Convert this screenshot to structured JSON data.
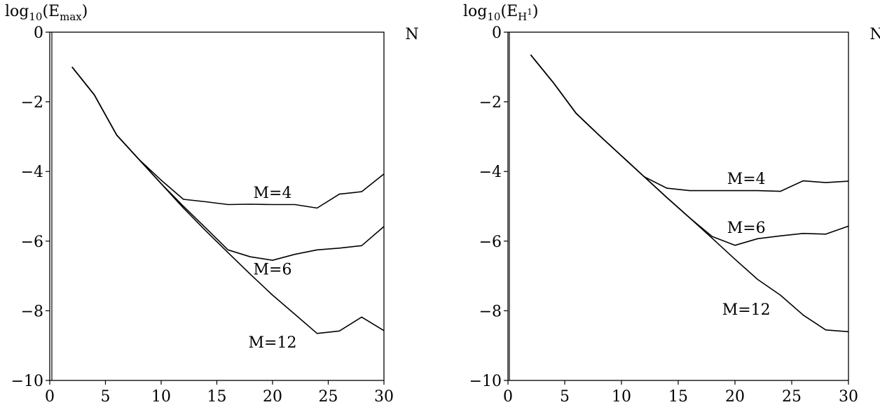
{
  "chart_data": [
    {
      "type": "line",
      "ylabel_base": "log",
      "ylabel_sub": "10",
      "ylabel_arg": "E",
      "ylabel_arg_sub": "max",
      "ylabel_open": "(",
      "ylabel_close": ")",
      "xlabel": "N",
      "xlim": [
        0,
        30
      ],
      "ylim": [
        -10,
        0
      ],
      "xticks": [
        0,
        5,
        10,
        15,
        20,
        25,
        30
      ],
      "yticks": [
        0,
        -2,
        -4,
        -6,
        -8,
        -10
      ],
      "xtick_labels": [
        "0",
        "5",
        "10",
        "15",
        "20",
        "25",
        "30"
      ],
      "ytick_labels": [
        "0",
        "−2",
        "−4",
        "−6",
        "−8",
        "−10"
      ],
      "series": [
        {
          "name": "M=4",
          "x": [
            2,
            4,
            6,
            8,
            10,
            12,
            14,
            16,
            18,
            20,
            22,
            24,
            26,
            28,
            30
          ],
          "values": [
            -1.0,
            -1.8,
            -2.95,
            -3.65,
            -4.25,
            -4.8,
            -4.87,
            -4.95,
            -4.94,
            -4.95,
            -4.95,
            -5.05,
            -4.65,
            -4.58,
            -4.07
          ],
          "label_at": [
            20,
            -4.6
          ]
        },
        {
          "name": "M=6",
          "x": [
            2,
            4,
            6,
            8,
            10,
            12,
            14,
            16,
            18,
            20,
            22,
            24,
            26,
            28,
            30
          ],
          "values": [
            -1.0,
            -1.8,
            -2.95,
            -3.65,
            -4.35,
            -5.0,
            -5.62,
            -6.25,
            -6.45,
            -6.55,
            -6.38,
            -6.25,
            -6.2,
            -6.13,
            -5.58
          ],
          "label_at": [
            20,
            -6.8
          ]
        },
        {
          "name": "M=12",
          "x": [
            2,
            4,
            6,
            8,
            10,
            12,
            14,
            16,
            18,
            20,
            22,
            24,
            26,
            28,
            30
          ],
          "values": [
            -1.0,
            -1.8,
            -2.95,
            -3.65,
            -4.35,
            -5.05,
            -5.7,
            -6.33,
            -6.95,
            -7.55,
            -8.1,
            -8.65,
            -8.58,
            -8.18,
            -8.57
          ],
          "label_at": [
            20,
            -8.9
          ]
        }
      ]
    },
    {
      "type": "line",
      "ylabel_base": "log",
      "ylabel_sub": "10",
      "ylabel_arg": "E",
      "ylabel_arg_sub": "H",
      "ylabel_arg_sup": "1",
      "ylabel_open": "(",
      "ylabel_close": ")",
      "xlabel": "N",
      "xlim": [
        0,
        30
      ],
      "ylim": [
        -10,
        0
      ],
      "xticks": [
        0,
        5,
        10,
        15,
        20,
        25,
        30
      ],
      "yticks": [
        0,
        -2,
        -4,
        -6,
        -8,
        -10
      ],
      "xtick_labels": [
        "0",
        "5",
        "10",
        "15",
        "20",
        "25",
        "30"
      ],
      "ytick_labels": [
        "0",
        "−2",
        "−4",
        "−6",
        "−8",
        "−10"
      ],
      "series": [
        {
          "name": "M=4",
          "x": [
            2,
            4,
            6,
            8,
            10,
            12,
            14,
            16,
            18,
            20,
            22,
            24,
            26,
            28,
            30
          ],
          "values": [
            -0.65,
            -1.45,
            -2.33,
            -2.95,
            -3.55,
            -4.15,
            -4.48,
            -4.55,
            -4.55,
            -4.55,
            -4.55,
            -4.57,
            -4.27,
            -4.32,
            -4.28
          ],
          "label_at": [
            21,
            -4.2
          ]
        },
        {
          "name": "M=6",
          "x": [
            2,
            4,
            6,
            8,
            10,
            12,
            14,
            16,
            18,
            20,
            22,
            24,
            26,
            28,
            30
          ],
          "values": [
            -0.65,
            -1.45,
            -2.33,
            -2.95,
            -3.55,
            -4.15,
            -4.75,
            -5.33,
            -5.87,
            -6.12,
            -5.93,
            -5.85,
            -5.78,
            -5.8,
            -5.57
          ],
          "label_at": [
            21,
            -5.6
          ]
        },
        {
          "name": "M=12",
          "x": [
            2,
            4,
            6,
            8,
            10,
            12,
            14,
            16,
            18,
            20,
            22,
            24,
            26,
            28,
            30
          ],
          "values": [
            -0.65,
            -1.45,
            -2.33,
            -2.95,
            -3.55,
            -4.15,
            -4.75,
            -5.33,
            -5.92,
            -6.52,
            -7.1,
            -7.55,
            -8.12,
            -8.55,
            -8.6
          ],
          "label_at": [
            21,
            -7.95
          ]
        }
      ]
    }
  ]
}
